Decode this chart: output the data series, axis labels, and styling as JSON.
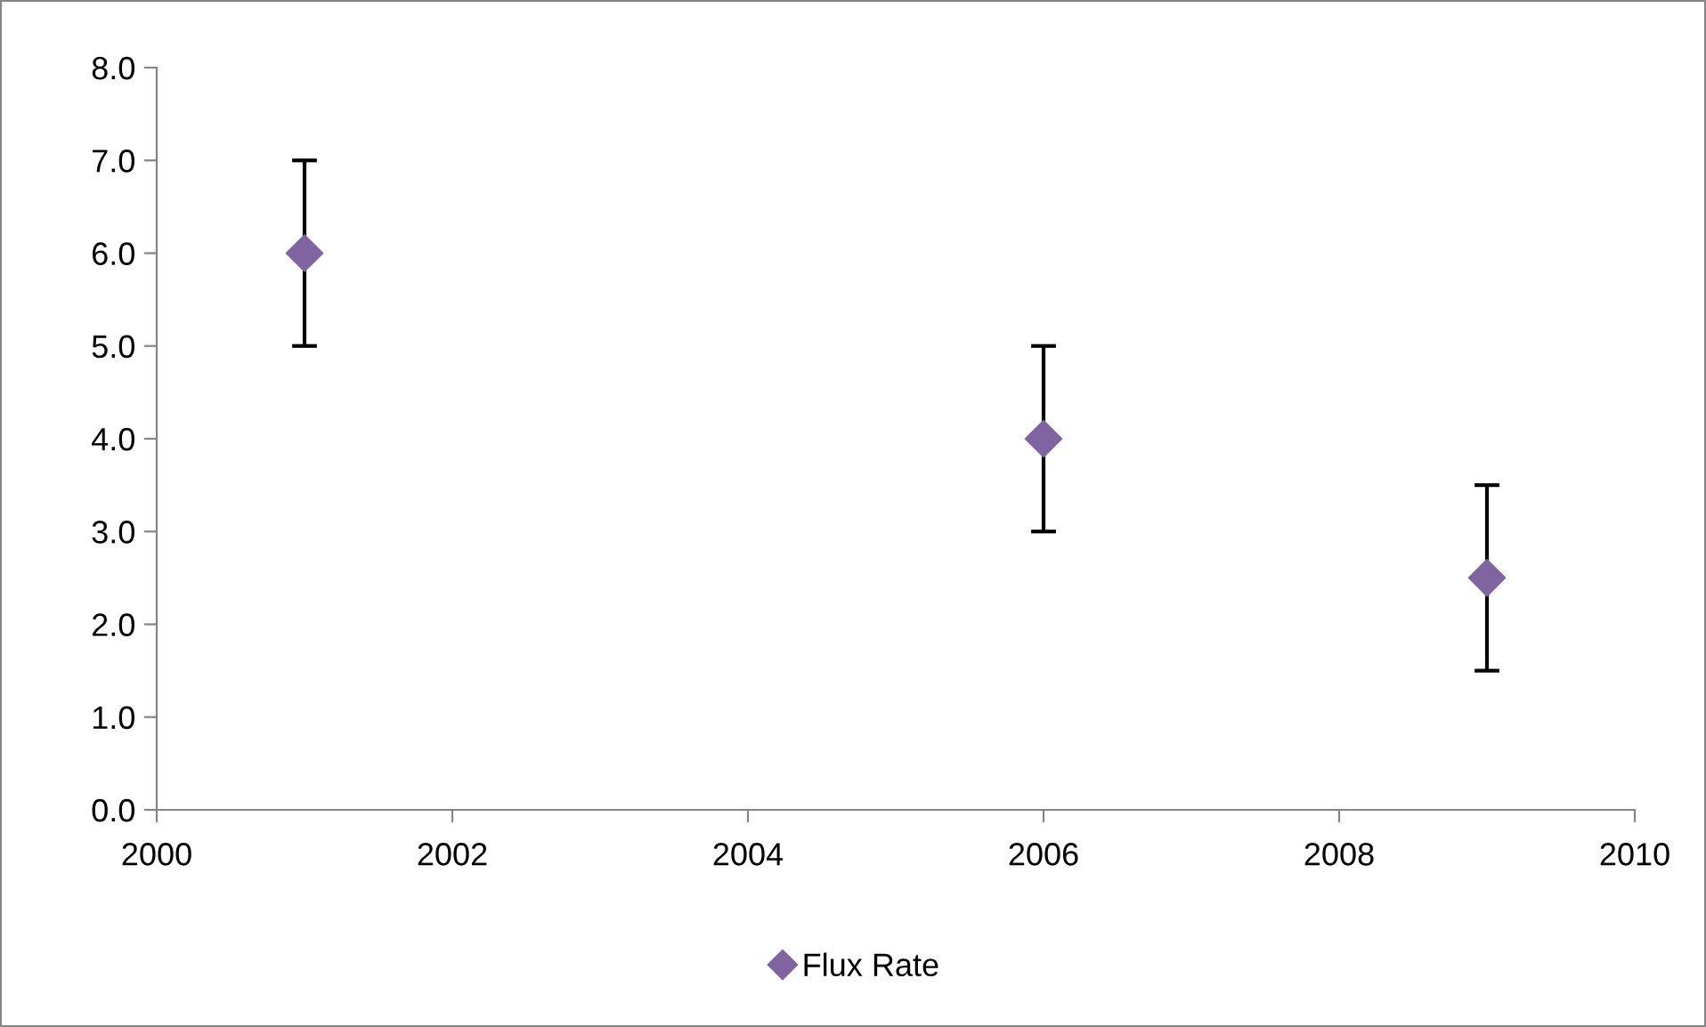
{
  "chart_data": {
    "type": "scatter",
    "x": [
      2001,
      2006,
      2009
    ],
    "series": [
      {
        "name": "Flux Rate",
        "color": "#8064a2",
        "values": [
          6.0,
          4.0,
          2.5
        ],
        "errors": [
          1.0,
          1.0,
          1.0
        ]
      }
    ],
    "marker": "diamond",
    "xlim": [
      2000,
      2010
    ],
    "xticks": [
      2000,
      2002,
      2004,
      2006,
      2008,
      2010
    ],
    "ylim": [
      0,
      8
    ],
    "yticks": [
      {
        "value": 0,
        "label": "0.0"
      },
      {
        "value": 1,
        "label": "1.0"
      },
      {
        "value": 2,
        "label": "2.0"
      },
      {
        "value": 3,
        "label": "3.0"
      },
      {
        "value": 4,
        "label": "4.0"
      },
      {
        "value": 5,
        "label": "5.0"
      },
      {
        "value": 6,
        "label": "6.0"
      },
      {
        "value": 7,
        "label": "7.0"
      },
      {
        "value": 8,
        "label": "8.0"
      }
    ],
    "grid": false,
    "legend": "bottom"
  }
}
